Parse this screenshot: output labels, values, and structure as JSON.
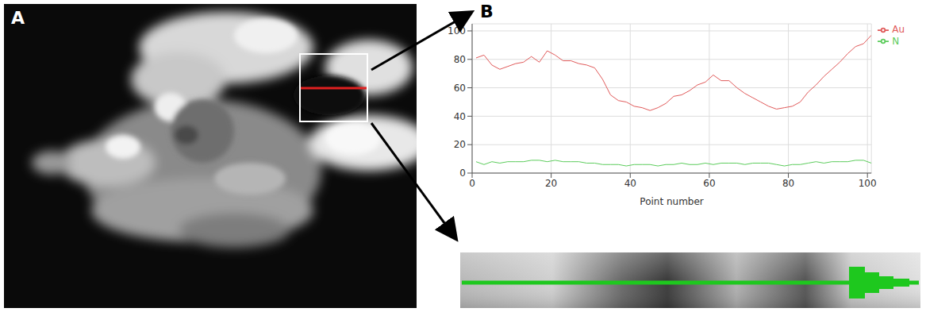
{
  "panel_labels": [
    "A",
    "B"
  ],
  "chart_data": {
    "type": "line",
    "xlabel": "Point number",
    "xlim": [
      0,
      101
    ],
    "xticks": [
      0,
      20,
      40,
      60,
      80,
      100
    ],
    "ylim": [
      0,
      105
    ],
    "yticks": [
      0,
      20,
      40,
      60,
      80,
      100
    ],
    "grid": true,
    "legend": "right",
    "x": [
      1,
      3,
      5,
      7,
      9,
      11,
      13,
      15,
      17,
      19,
      21,
      23,
      25,
      27,
      29,
      31,
      33,
      35,
      37,
      39,
      41,
      43,
      45,
      47,
      49,
      51,
      53,
      55,
      57,
      59,
      61,
      63,
      65,
      67,
      69,
      71,
      73,
      75,
      77,
      79,
      81,
      83,
      85,
      87,
      89,
      91,
      93,
      95,
      97,
      99,
      101
    ],
    "series": [
      {
        "name": "Au",
        "color": "#e05a5a",
        "values": [
          81,
          83,
          76,
          73,
          75,
          77,
          78,
          82,
          78,
          86,
          83,
          79,
          79,
          77,
          76,
          74,
          66,
          55,
          51,
          50,
          47,
          46,
          44,
          46,
          49,
          54,
          55,
          58,
          62,
          64,
          69,
          65,
          65,
          60,
          56,
          53,
          50,
          47,
          45,
          46,
          47,
          50,
          57,
          62,
          68,
          73,
          78,
          84,
          89,
          91,
          97
        ]
      },
      {
        "name": "N",
        "color": "#5ccc5c",
        "values": [
          8,
          6,
          8,
          7,
          8,
          8,
          8,
          9,
          9,
          8,
          9,
          8,
          8,
          8,
          7,
          7,
          6,
          6,
          6,
          5,
          6,
          6,
          6,
          5,
          6,
          6,
          7,
          6,
          6,
          7,
          6,
          7,
          7,
          7,
          6,
          7,
          7,
          7,
          6,
          5,
          6,
          6,
          7,
          8,
          7,
          8,
          8,
          8,
          9,
          9,
          7
        ]
      }
    ]
  }
}
